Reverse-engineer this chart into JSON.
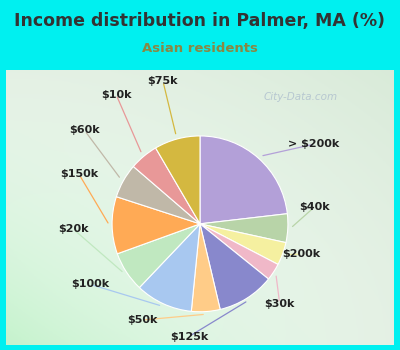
{
  "title": "Income distribution in Palmer, MA (%)",
  "subtitle": "Asian residents",
  "title_color": "#333333",
  "subtitle_color": "#888844",
  "background_cyan": "#00f0f0",
  "watermark": "City-Data.com",
  "labels": [
    "> $200k",
    "$40k",
    "$200k",
    "$30k",
    "$125k",
    "$50k",
    "$100k",
    "$20k",
    "$150k",
    "$60k",
    "$10k",
    "$75k"
  ],
  "values": [
    22,
    5,
    4,
    3,
    10,
    5,
    10,
    7,
    10,
    6,
    5,
    8
  ],
  "colors": [
    "#b3a0d8",
    "#b8d4a8",
    "#f5f0a0",
    "#f0b8c8",
    "#8888cc",
    "#ffcc88",
    "#a8c8f0",
    "#c0e8c0",
    "#ffaa55",
    "#c0b8a8",
    "#e89898",
    "#d4b840"
  ],
  "label_fontsize": 8,
  "figsize": [
    4.0,
    3.5
  ],
  "dpi": 100
}
